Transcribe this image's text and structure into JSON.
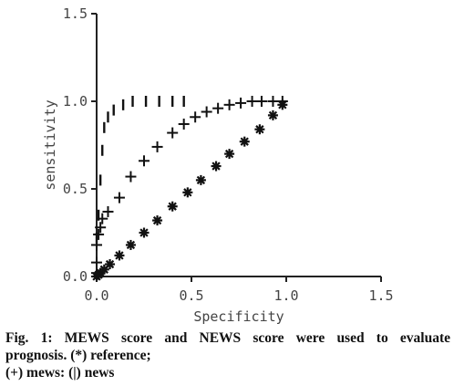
{
  "chart_data": {
    "type": "scatter",
    "xlabel": "Specificity",
    "ylabel": "sensitivity",
    "xlim": [
      0,
      1.5
    ],
    "ylim": [
      0,
      1.5
    ],
    "xticks": [
      "0.0",
      "0.5",
      "1.0",
      "1.5"
    ],
    "yticks": [
      "0.0",
      "0.5",
      "1.0",
      "1.5"
    ],
    "grid": false,
    "colors": {
      "marker": "#111111",
      "axis": "#222222",
      "text": "#444444"
    },
    "series": [
      {
        "marker": "*",
        "x": [
          0.0,
          0.01,
          0.02,
          0.04,
          0.07,
          0.12,
          0.18,
          0.25,
          0.32,
          0.4,
          0.48,
          0.55,
          0.63,
          0.7,
          0.78,
          0.86,
          0.93,
          0.98
        ],
        "y": [
          0.0,
          0.01,
          0.02,
          0.04,
          0.07,
          0.12,
          0.18,
          0.25,
          0.32,
          0.4,
          0.48,
          0.55,
          0.63,
          0.7,
          0.77,
          0.84,
          0.92,
          0.98
        ]
      },
      {
        "marker": "+",
        "x": [
          0.0,
          0.0,
          0.0,
          0.01,
          0.02,
          0.03,
          0.06,
          0.12,
          0.18,
          0.25,
          0.32,
          0.4,
          0.46,
          0.52,
          0.58,
          0.64,
          0.7,
          0.76,
          0.82,
          0.87,
          0.93,
          0.98
        ],
        "y": [
          0.02,
          0.08,
          0.18,
          0.24,
          0.28,
          0.33,
          0.37,
          0.45,
          0.57,
          0.66,
          0.74,
          0.82,
          0.87,
          0.91,
          0.94,
          0.96,
          0.98,
          0.99,
          1.0,
          1.0,
          1.0,
          1.0
        ]
      },
      {
        "marker": "|",
        "x": [
          0.0,
          0.01,
          0.02,
          0.03,
          0.04,
          0.06,
          0.09,
          0.14,
          0.19,
          0.26,
          0.33,
          0.4,
          0.46
        ],
        "y": [
          0.22,
          0.35,
          0.55,
          0.72,
          0.85,
          0.91,
          0.95,
          0.98,
          1.0,
          1.0,
          1.0,
          1.0,
          1.0
        ]
      }
    ]
  },
  "caption": {
    "line1": "Fig. 1: MEWS score and NEWS score were used to evaluate",
    "line2": "prognosis. (*) reference;",
    "line3": "(+) mews: (|) news"
  }
}
